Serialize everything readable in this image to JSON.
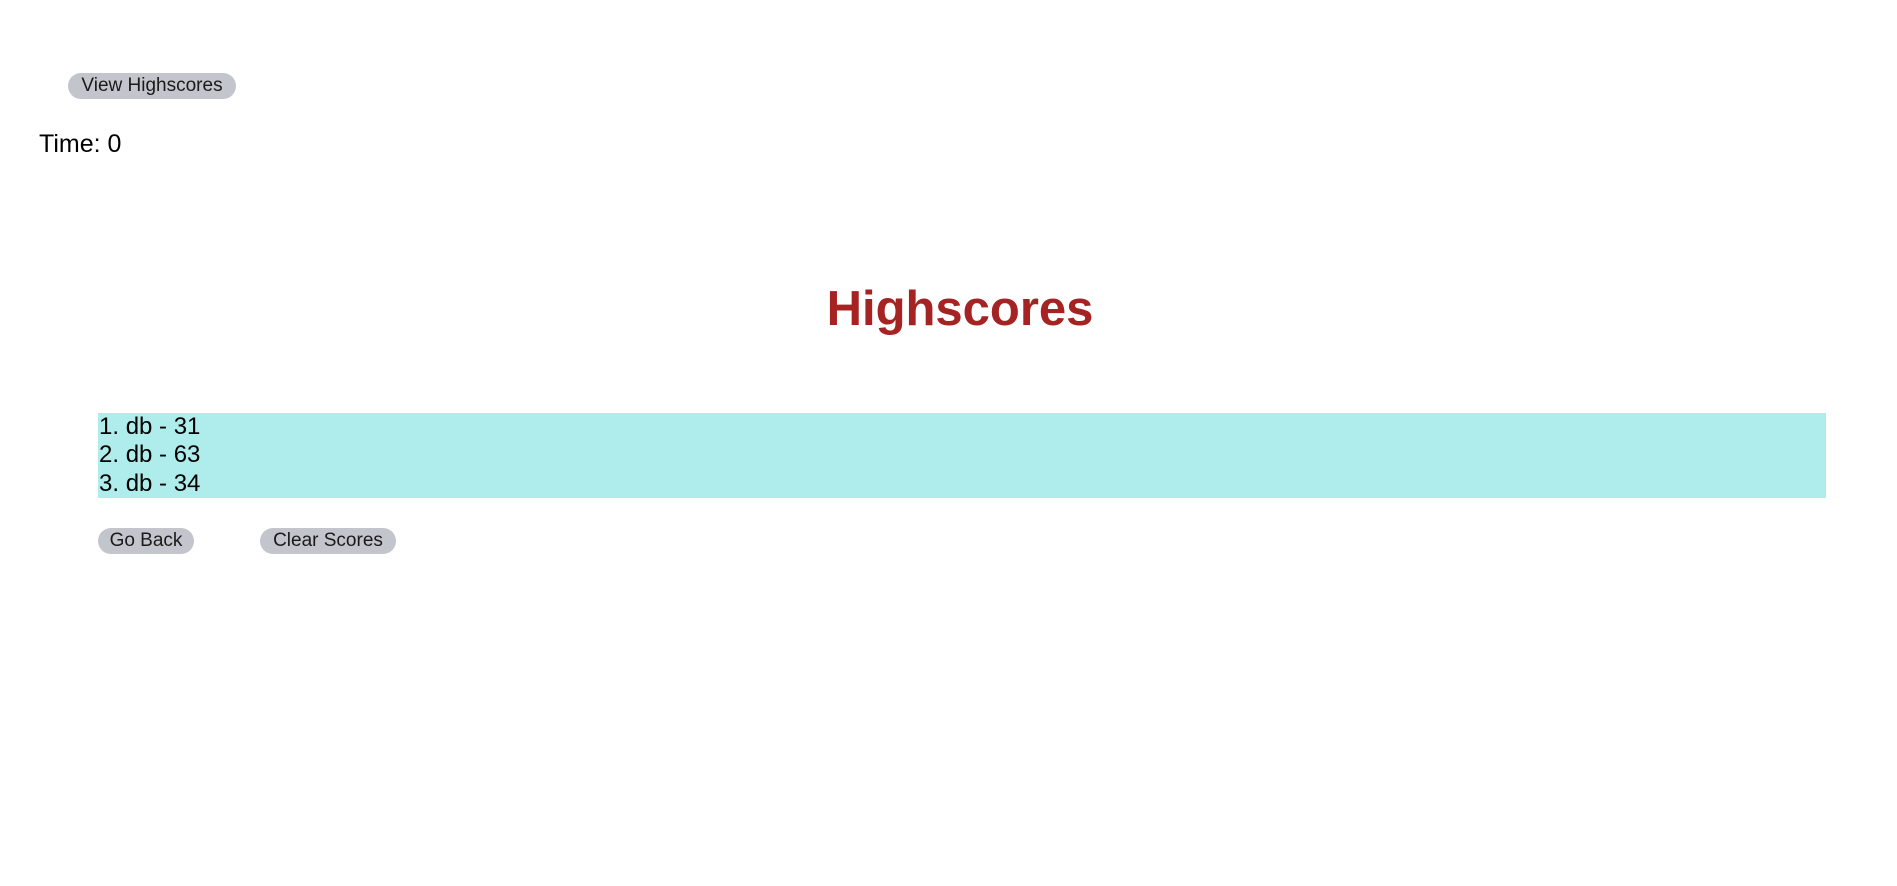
{
  "header": {
    "view_highscores_label": "View Highscores",
    "timer_label": "Time: ",
    "timer_value": "0"
  },
  "main": {
    "title": "Highscores",
    "scores": [
      {
        "rank": "1.",
        "entry": "db - 31"
      },
      {
        "rank": "2.",
        "entry": "db - 63"
      },
      {
        "rank": "3.",
        "entry": "db - 34"
      }
    ],
    "go_back_label": "Go Back",
    "clear_scores_label": "Clear Scores"
  },
  "colors": {
    "title": "#a52323",
    "list_background": "#afecec",
    "button_background": "#c3c5cc",
    "page_background": "#ffffff"
  }
}
